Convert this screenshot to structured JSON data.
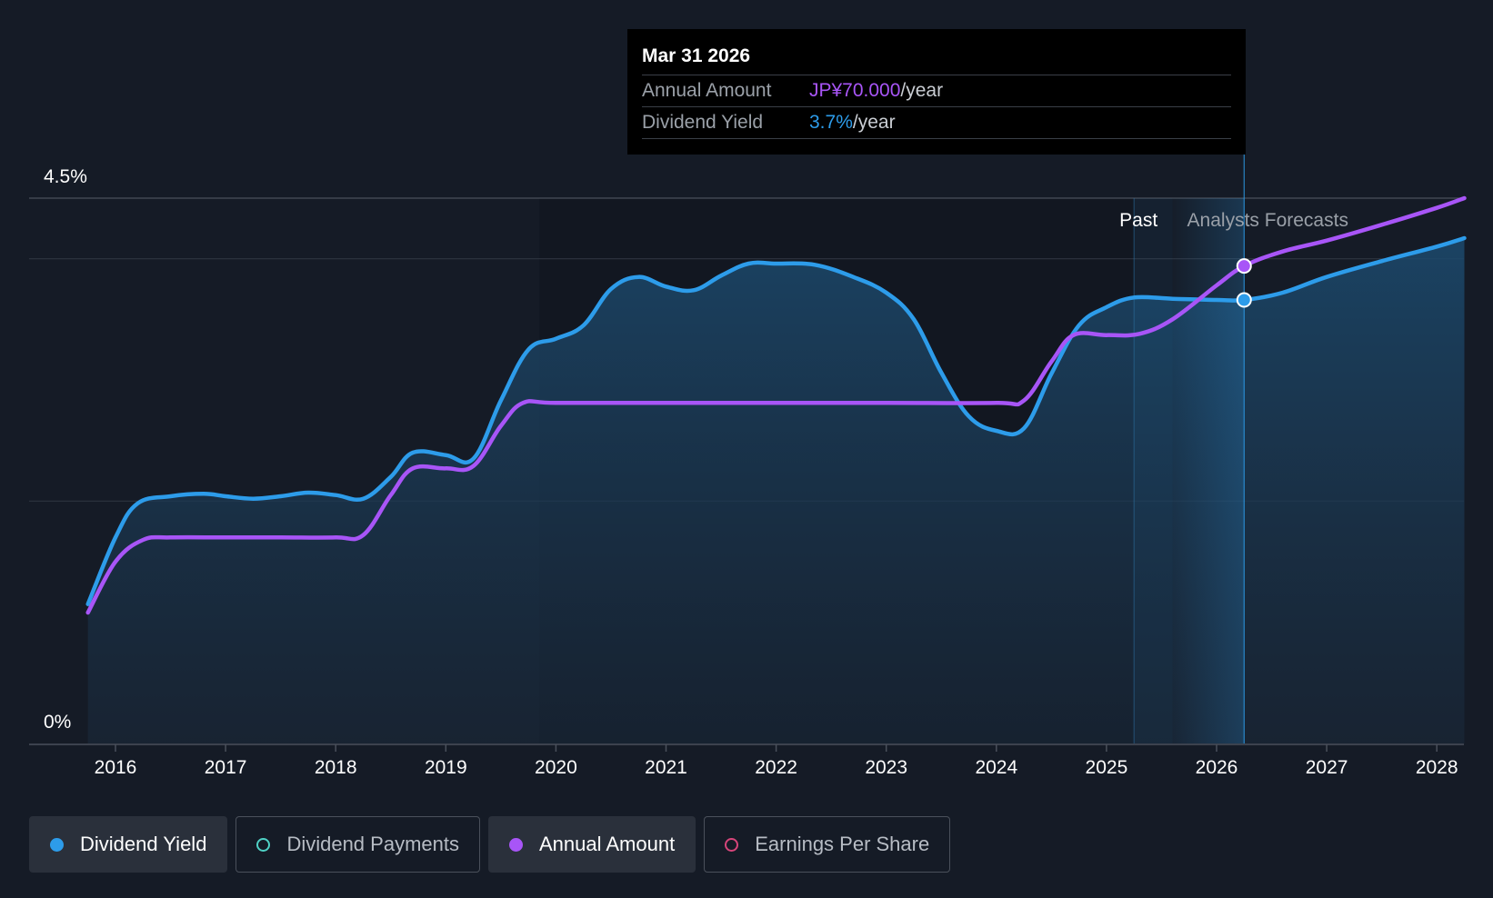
{
  "chart_data": {
    "type": "line",
    "x_unit": "year",
    "xlim": [
      2015.75,
      2028.25
    ],
    "ylim": [
      0,
      4.5
    ],
    "y_unit": "%",
    "y_ticks": [
      {
        "value": 4.5,
        "label": "4.5%"
      },
      {
        "value": 0,
        "label": "0%"
      }
    ],
    "gridlines": [
      4.5,
      4.0,
      2.0
    ],
    "x_ticks": [
      {
        "value": 2016,
        "label": "2016"
      },
      {
        "value": 2017,
        "label": "2017"
      },
      {
        "value": 2018,
        "label": "2018"
      },
      {
        "value": 2019,
        "label": "2019"
      },
      {
        "value": 2020,
        "label": "2020"
      },
      {
        "value": 2021,
        "label": "2021"
      },
      {
        "value": 2022,
        "label": "2022"
      },
      {
        "value": 2023,
        "label": "2023"
      },
      {
        "value": 2024,
        "label": "2024"
      },
      {
        "value": 2025,
        "label": "2025"
      },
      {
        "value": 2026,
        "label": "2026"
      },
      {
        "value": 2027,
        "label": "2027"
      },
      {
        "value": 2028,
        "label": "2028"
      }
    ],
    "past_boundary": 2025.25,
    "forecast_start": 2025.6,
    "cursor_x": 2026.25,
    "region_labels": {
      "past": "Past",
      "forecast": "Analysts Forecasts"
    },
    "series": [
      {
        "name": "Dividend Yield",
        "color": "#2d9cea",
        "filled": true,
        "points": [
          [
            2015.75,
            1.15
          ],
          [
            2016.0,
            1.7
          ],
          [
            2016.2,
            1.98
          ],
          [
            2016.5,
            2.04
          ],
          [
            2016.8,
            2.06
          ],
          [
            2017.0,
            2.04
          ],
          [
            2017.25,
            2.02
          ],
          [
            2017.5,
            2.04
          ],
          [
            2017.75,
            2.07
          ],
          [
            2018.0,
            2.05
          ],
          [
            2018.25,
            2.02
          ],
          [
            2018.5,
            2.2
          ],
          [
            2018.7,
            2.4
          ],
          [
            2019.0,
            2.38
          ],
          [
            2019.25,
            2.35
          ],
          [
            2019.5,
            2.83
          ],
          [
            2019.75,
            3.25
          ],
          [
            2020.0,
            3.34
          ],
          [
            2020.25,
            3.45
          ],
          [
            2020.5,
            3.75
          ],
          [
            2020.75,
            3.85
          ],
          [
            2021.0,
            3.77
          ],
          [
            2021.25,
            3.74
          ],
          [
            2021.5,
            3.86
          ],
          [
            2021.75,
            3.96
          ],
          [
            2022.0,
            3.96
          ],
          [
            2022.35,
            3.95
          ],
          [
            2022.7,
            3.85
          ],
          [
            2023.0,
            3.72
          ],
          [
            2023.25,
            3.5
          ],
          [
            2023.5,
            3.06
          ],
          [
            2023.75,
            2.7
          ],
          [
            2024.0,
            2.58
          ],
          [
            2024.25,
            2.6
          ],
          [
            2024.5,
            3.05
          ],
          [
            2024.75,
            3.45
          ],
          [
            2025.0,
            3.6
          ],
          [
            2025.25,
            3.68
          ],
          [
            2025.6,
            3.67
          ],
          [
            2026.0,
            3.66
          ],
          [
            2026.25,
            3.66
          ],
          [
            2026.6,
            3.72
          ],
          [
            2027.0,
            3.85
          ],
          [
            2027.5,
            3.98
          ],
          [
            2028.0,
            4.1
          ],
          [
            2028.25,
            4.17
          ]
        ]
      },
      {
        "name": "Annual Amount",
        "color": "#a855f7",
        "filled": false,
        "points": [
          [
            2015.75,
            1.08
          ],
          [
            2016.0,
            1.5
          ],
          [
            2016.25,
            1.68
          ],
          [
            2016.5,
            1.7
          ],
          [
            2017.0,
            1.7
          ],
          [
            2017.5,
            1.7
          ],
          [
            2018.0,
            1.7
          ],
          [
            2018.25,
            1.72
          ],
          [
            2018.5,
            2.05
          ],
          [
            2018.7,
            2.27
          ],
          [
            2019.0,
            2.27
          ],
          [
            2019.25,
            2.29
          ],
          [
            2019.5,
            2.62
          ],
          [
            2019.7,
            2.81
          ],
          [
            2020.0,
            2.81
          ],
          [
            2021.0,
            2.81
          ],
          [
            2022.0,
            2.81
          ],
          [
            2023.0,
            2.81
          ],
          [
            2024.0,
            2.81
          ],
          [
            2024.25,
            2.83
          ],
          [
            2024.5,
            3.15
          ],
          [
            2024.7,
            3.37
          ],
          [
            2025.0,
            3.37
          ],
          [
            2025.3,
            3.38
          ],
          [
            2025.6,
            3.5
          ],
          [
            2026.0,
            3.78
          ],
          [
            2026.25,
            3.94
          ],
          [
            2026.6,
            4.06
          ],
          [
            2027.0,
            4.15
          ],
          [
            2027.5,
            4.28
          ],
          [
            2028.0,
            4.42
          ],
          [
            2028.25,
            4.5
          ]
        ]
      }
    ],
    "markers": [
      {
        "series": "Annual Amount",
        "x": 2026.25,
        "y": 3.94,
        "color": "#a855f7"
      },
      {
        "series": "Dividend Yield",
        "x": 2026.25,
        "y": 3.66,
        "color": "#2d9cea"
      }
    ]
  },
  "tooltip": {
    "date": "Mar 31 2026",
    "rows": [
      {
        "label": "Annual Amount",
        "value": "JP¥70.000",
        "unit": "/year"
      },
      {
        "label": "Dividend Yield",
        "value": "3.7%",
        "unit": "/year"
      }
    ]
  },
  "legend": [
    {
      "label": "Dividend Yield",
      "state": "active",
      "color": "#2d9cea"
    },
    {
      "label": "Dividend Payments",
      "state": "inactive",
      "color": "#4fd1c5"
    },
    {
      "label": "Annual Amount",
      "state": "active",
      "color": "#a855f7"
    },
    {
      "label": "Earnings Per Share",
      "state": "inactive",
      "color": "#d6457a"
    }
  ]
}
